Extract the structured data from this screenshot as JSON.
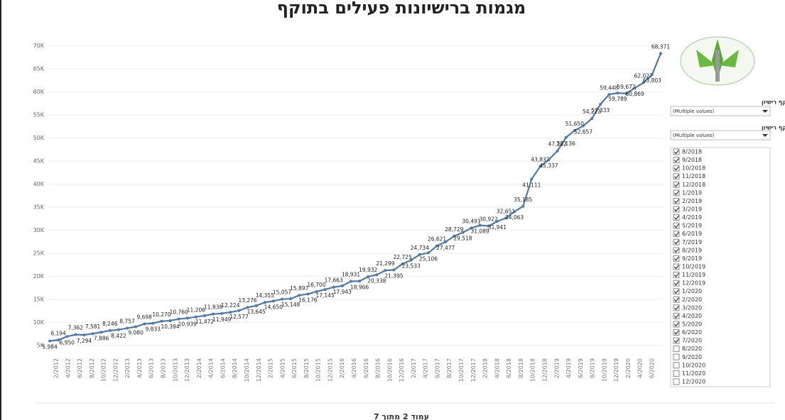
{
  "chart_data": {
    "type": "line",
    "title": "מגמות ברישיונות פעילים בתוקף",
    "values": [
      5984,
      6194,
      6950,
      7362,
      7294,
      7581,
      7886,
      8246,
      8422,
      8757,
      9080,
      9698,
      9833,
      10270,
      10394,
      10760,
      10939,
      11206,
      11472,
      11838,
      11949,
      12224,
      12577,
      13276,
      13645,
      14355,
      14650,
      15057,
      15148,
      15897,
      16176,
      16700,
      17145,
      17663,
      17943,
      18931,
      18966,
      19932,
      20338,
      21299,
      21395,
      22725,
      23533,
      24734,
      25106,
      26621,
      27477,
      28729,
      29518,
      30491,
      31089,
      30922,
      31941,
      32651,
      34063,
      35185,
      41111,
      43832,
      45337,
      47222,
      50136,
      51650,
      52657,
      54223,
      57333,
      59448,
      59789,
      59672,
      60869,
      62027,
      63803,
      68371
    ],
    "value_labels": [
      "5,984",
      "6,194",
      "6,950",
      "7,362",
      "7,294",
      "7,581",
      "7,886",
      "8,246",
      "8,422",
      "8,757",
      "9,080",
      "9,698",
      "9,833",
      "10,270",
      "10,394",
      "10,760",
      "10,939",
      "11,206",
      "11,472",
      "11,838",
      "11,949",
      "12,224",
      "12,577",
      "13,276",
      "13,645",
      "14,355",
      "14,650",
      "15,057",
      "15,148",
      "15,897",
      "16,176",
      "16,700",
      "17,145",
      "17,663",
      "17,943",
      "18,931",
      "18,966",
      "19,932",
      "20,338",
      "21,299",
      "21,395",
      "22,725",
      "23,533",
      "24,734",
      "25,106",
      "26,621",
      "27,477",
      "28,729",
      "29,518",
      "30,491",
      "31,089",
      "30,922",
      "31,941",
      "32,651",
      "34,063",
      "35,185",
      "41,111",
      "43,832",
      "45,337",
      "47,222",
      "50,136",
      "51,650",
      "52,657",
      "54,223",
      "57,333",
      "59,448",
      "59,789",
      "59,672",
      "60,869",
      "62,027",
      "63,803",
      "68,371"
    ],
    "x_labels": [
      "2/2012",
      "4/2012",
      "6/2012",
      "8/2012",
      "10/2012",
      "12/2012",
      "2/2013",
      "4/2013",
      "6/2013",
      "8/2013",
      "10/2013",
      "12/2013",
      "2/2014",
      "4/2014",
      "6/2014",
      "8/2014",
      "10/2014",
      "12/2014",
      "2/2015",
      "4/2015",
      "6/2015",
      "8/2015",
      "10/2015",
      "12/2015",
      "2/2016",
      "4/2016",
      "6/2016",
      "8/2016",
      "10/2016",
      "12/2016",
      "2/2017",
      "4/2017",
      "6/2017",
      "8/2017",
      "10/2017",
      "12/2017",
      "2/2018",
      "4/2018",
      "6/2018",
      "8/2018",
      "10/2018",
      "12/2018",
      "2/2019",
      "4/2019",
      "6/2019",
      "8/2019",
      "10/2019",
      "12/2019",
      "2/2020",
      "4/2020",
      "6/2020"
    ],
    "color": "#4e79a7",
    "ylim": [
      3000,
      71500
    ],
    "yticks": [
      {
        "value": 5000,
        "label": "5K"
      },
      {
        "value": 10000,
        "label": "10K"
      },
      {
        "value": 15000,
        "label": "15K"
      },
      {
        "value": 20000,
        "label": "20K"
      },
      {
        "value": 25000,
        "label": "25K"
      },
      {
        "value": 30000,
        "label": "30K"
      },
      {
        "value": 35000,
        "label": "35K"
      },
      {
        "value": 40000,
        "label": "40K"
      },
      {
        "value": 45000,
        "label": "45K"
      },
      {
        "value": 50000,
        "label": "50K"
      },
      {
        "value": 55000,
        "label": "55K"
      },
      {
        "value": 60000,
        "label": "60K"
      },
      {
        "value": 65000,
        "label": "65K"
      },
      {
        "value": 70000,
        "label": "70K"
      }
    ],
    "grid": true
  },
  "filters": {
    "year_title": "שנה תוקף רישיון",
    "year_value": "(Multiple values)",
    "month_title": "חודש תוקף רישיון",
    "month_value": "(Multiple values)",
    "months": [
      {
        "label": "8/2018",
        "checked": true
      },
      {
        "label": "9/2018",
        "checked": true
      },
      {
        "label": "10/2018",
        "checked": true
      },
      {
        "label": "11/2018",
        "checked": true
      },
      {
        "label": "12/2018",
        "checked": true
      },
      {
        "label": "1/2019",
        "checked": true
      },
      {
        "label": "2/2019",
        "checked": true
      },
      {
        "label": "3/2019",
        "checked": true
      },
      {
        "label": "4/2019",
        "checked": true
      },
      {
        "label": "5/2019",
        "checked": true
      },
      {
        "label": "6/2019",
        "checked": true
      },
      {
        "label": "7/2019",
        "checked": true
      },
      {
        "label": "8/2019",
        "checked": true
      },
      {
        "label": "9/2019",
        "checked": true
      },
      {
        "label": "10/2019",
        "checked": true
      },
      {
        "label": "11/2019",
        "checked": true
      },
      {
        "label": "12/2019",
        "checked": true
      },
      {
        "label": "1/2020",
        "checked": true
      },
      {
        "label": "2/2020",
        "checked": true
      },
      {
        "label": "3/2020",
        "checked": true
      },
      {
        "label": "4/2020",
        "checked": true
      },
      {
        "label": "5/2020",
        "checked": true
      },
      {
        "label": "6/2020",
        "checked": true
      },
      {
        "label": "7/2020",
        "checked": true
      },
      {
        "label": "8/2020",
        "checked": false
      },
      {
        "label": "9/2020",
        "checked": false
      },
      {
        "label": "10/2020",
        "checked": false
      },
      {
        "label": "11/2020",
        "checked": false
      },
      {
        "label": "12/2020",
        "checked": false
      }
    ]
  },
  "footer": "עמוד 2 מתוך 7"
}
